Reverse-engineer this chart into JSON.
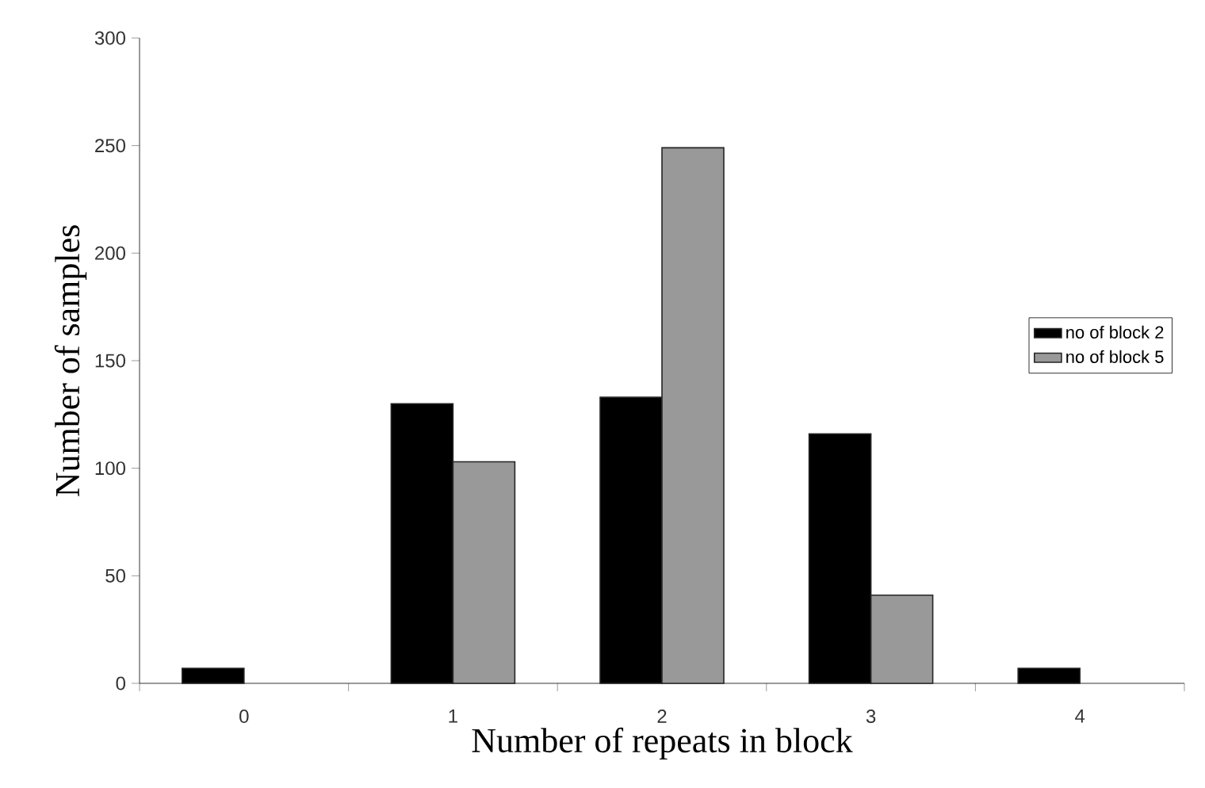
{
  "chart_data": {
    "type": "bar",
    "xlabel": "Number of repeats in block",
    "ylabel": "Number of samples",
    "categories": [
      "0",
      "1",
      "2",
      "3",
      "4"
    ],
    "series": [
      {
        "name": "no of block 2",
        "color": "#000000",
        "values": [
          7,
          130,
          133,
          116,
          7
        ]
      },
      {
        "name": "no of block 5",
        "color": "#999999",
        "values": [
          null,
          103,
          249,
          41,
          null
        ]
      }
    ],
    "ylim": [
      0,
      300
    ],
    "yticks": [
      0,
      50,
      100,
      150,
      200,
      250,
      300
    ],
    "legend": "right",
    "grid": false
  }
}
